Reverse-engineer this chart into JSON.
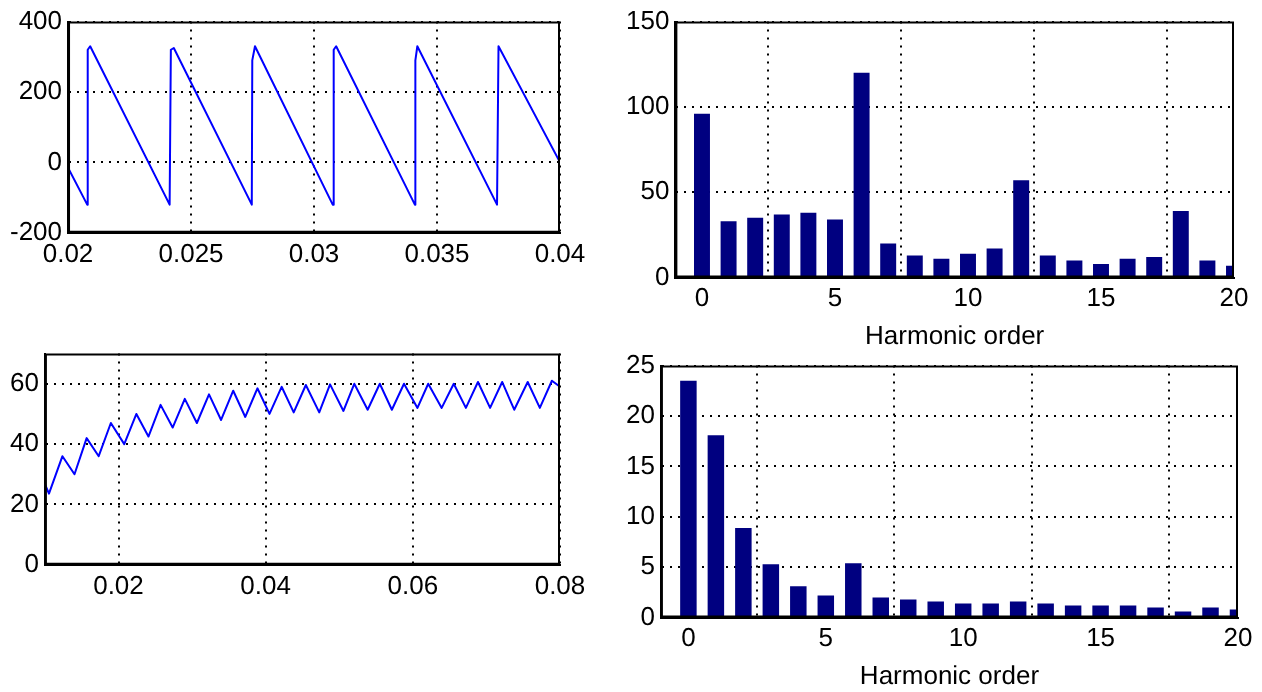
{
  "chart_data": [
    {
      "type": "line",
      "color": "#0000ff",
      "xlim": [
        0.02,
        0.04
      ],
      "xticks": [
        0.02,
        0.025,
        0.03,
        0.035,
        0.04
      ],
      "ylim": [
        -200,
        400
      ],
      "yticks": [
        -200,
        0,
        200,
        400
      ],
      "grid": true,
      "x": [
        0.02,
        0.02078,
        0.0208,
        0.0209,
        0.02413,
        0.02418,
        0.0243,
        0.02747,
        0.02749,
        0.0276,
        0.03076,
        0.0308,
        0.0309,
        0.0341,
        0.03412,
        0.0342,
        0.03744,
        0.0375,
        0.04
      ],
      "values": [
        -15,
        -120,
        320,
        330,
        -120,
        320,
        325,
        -120,
        290,
        330,
        -120,
        320,
        330,
        -120,
        290,
        330,
        -120,
        330,
        0
      ]
    },
    {
      "type": "bar",
      "color": "#000080",
      "xlabel": "Harmonic order",
      "xlim": [
        -1,
        20
      ],
      "xticks": [
        0,
        5,
        10,
        15,
        20
      ],
      "ylim": [
        0,
        150
      ],
      "yticks": [
        0,
        50,
        100,
        150
      ],
      "grid": true,
      "x": [
        0,
        1,
        2,
        3,
        4,
        5,
        6,
        7,
        8,
        9,
        10,
        11,
        12,
        13,
        14,
        15,
        16,
        17,
        18,
        19,
        20
      ],
      "values": [
        96,
        33,
        35,
        37,
        38,
        34,
        120,
        20,
        13,
        11,
        14,
        17,
        57,
        13,
        10,
        8,
        11,
        12,
        39,
        10,
        7
      ]
    },
    {
      "type": "line",
      "color": "#0000ff",
      "xlim": [
        0.01,
        0.08
      ],
      "xticks": [
        0.02,
        0.04,
        0.06,
        0.08
      ],
      "ylim": [
        0,
        70
      ],
      "yticks": [
        0,
        20,
        40,
        60
      ],
      "grid": true,
      "x": [
        0.01,
        0.01055,
        0.01238,
        0.01402,
        0.01567,
        0.01731,
        0.01896,
        0.02078,
        0.02243,
        0.02407,
        0.02572,
        0.02736,
        0.02901,
        0.03065,
        0.0323,
        0.03394,
        0.03559,
        0.03723,
        0.03888,
        0.04052,
        0.04217,
        0.04381,
        0.04546,
        0.04728,
        0.04875,
        0.05057,
        0.05204,
        0.05386,
        0.05551,
        0.05715,
        0.0588,
        0.06063,
        0.06209,
        0.06392,
        0.06556,
        0.06721,
        0.06885,
        0.0705,
        0.07214,
        0.07378,
        0.07561,
        0.07726,
        0.0789,
        0.08
      ],
      "values": [
        26.7,
        23.6,
        36,
        30,
        42,
        36,
        47,
        40,
        50,
        42.5,
        53,
        45.5,
        55,
        47,
        56.5,
        48,
        57.7,
        49,
        58.5,
        50,
        59,
        50.5,
        59.6,
        50.5,
        59.8,
        51,
        60,
        51.4,
        60,
        51.4,
        60,
        52,
        60,
        52,
        60,
        52,
        60.6,
        52,
        60.6,
        51.4,
        60.6,
        52,
        61,
        59
      ]
    },
    {
      "type": "bar",
      "color": "#000080",
      "xlabel": "Harmonic order",
      "xlim": [
        -1,
        20
      ],
      "xticks": [
        0,
        5,
        10,
        15,
        20
      ],
      "ylim": [
        0,
        25
      ],
      "yticks": [
        0,
        5,
        10,
        15,
        20,
        25
      ],
      "grid": true,
      "x": [
        0,
        1,
        2,
        3,
        4,
        5,
        6,
        7,
        8,
        9,
        10,
        11,
        12,
        13,
        14,
        15,
        16,
        17,
        18,
        19,
        20
      ],
      "values": [
        23.5,
        18.1,
        8.9,
        5.3,
        3.1,
        2.2,
        5.4,
        2.0,
        1.8,
        1.6,
        1.4,
        1.4,
        1.6,
        1.4,
        1.2,
        1.2,
        1.2,
        1.0,
        0.6,
        1.0,
        0.8
      ]
    }
  ]
}
